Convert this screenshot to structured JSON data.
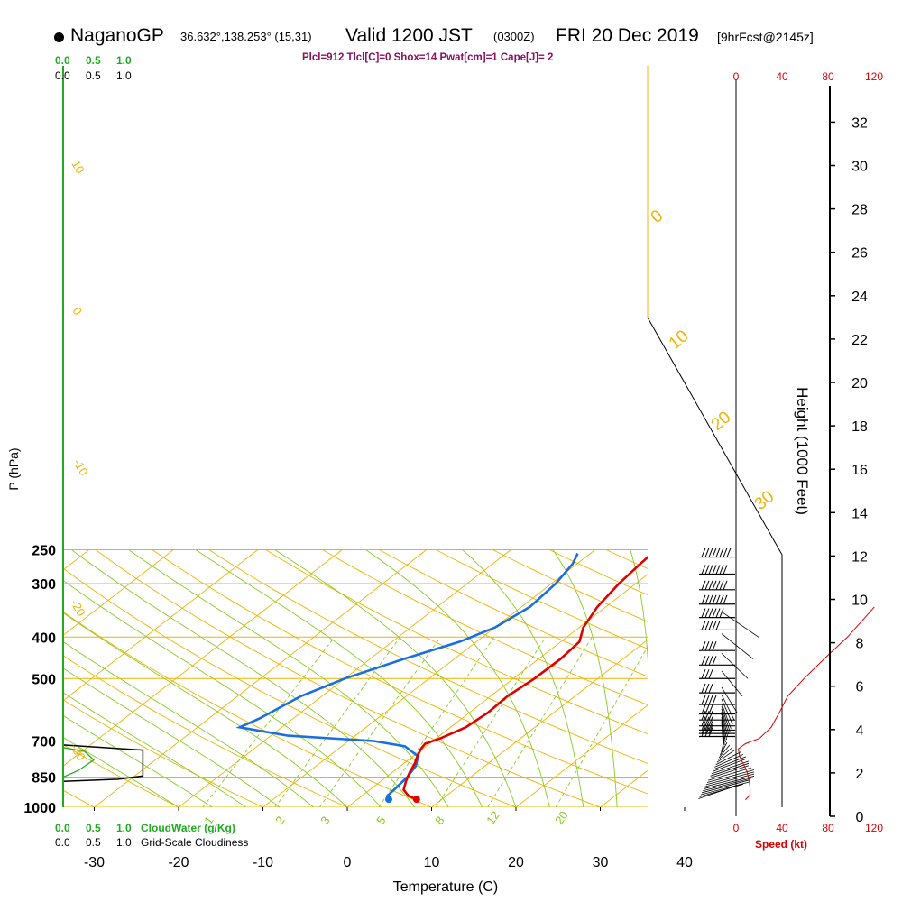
{
  "header": {
    "station": "NaganoGP",
    "coords": "36.632°,138.253° (15,31)",
    "valid": "Valid 1200 JST",
    "utc": "(0300Z)",
    "date": "FRI 20 Dec 2019",
    "forecast": "[9hrFcst@2145z]",
    "params": "Plcl=912 Tlcl[C]=0 Shox=14 Pwat[cm]=1 Cape[J]= 2"
  },
  "cloud_scale": {
    "top_green": [
      "0.0",
      "0.5",
      "1.0"
    ],
    "top_black": [
      "0.0",
      "0.5",
      "1.0"
    ],
    "bottom_green": [
      "0.0",
      "0.5",
      "1.0"
    ],
    "bottom_black": [
      "0.0",
      "0.5",
      "1.0"
    ],
    "cloudwater_label": "CloudWater (g/Kg)",
    "cloudiness_label": "Grid-Scale Cloudiness"
  },
  "colors": {
    "isobar": "#f0b400",
    "dry_adiabat": "#f0b400",
    "moist_adiabat": "#88cc22",
    "mixing_ratio": "#88cc22",
    "temperature": "#e00000",
    "dewpoint": "#1a6fe0",
    "cloudwater": "#22aa22",
    "cloudiness": "#000000",
    "speed": "#dd0000"
  },
  "chart_data": {
    "type": "skew-t",
    "xlabel": "Temperature (C)",
    "ylabel": "P (hPa)",
    "right_label": "Height (1000 Feet)",
    "speed_label": "Speed (kt)",
    "x_ticks": [
      -30,
      -20,
      -10,
      0,
      10,
      20,
      30,
      40
    ],
    "p_ticks": [
      250,
      300,
      400,
      500,
      700,
      850,
      1000
    ],
    "height_ticks": [
      0,
      2,
      4,
      6,
      8,
      10,
      12,
      14,
      16,
      18,
      20,
      22,
      24,
      26,
      28,
      30,
      32
    ],
    "speed_ticks": [
      "0",
      "40",
      "80",
      "120"
    ],
    "dry_adiabat_labels": [
      "10",
      "0",
      "-10",
      "-20",
      "-30"
    ],
    "moist_adiabat_labels": [
      "0",
      "10",
      "20",
      "30"
    ],
    "mixing_ratio_labels": [
      "1",
      "2",
      "3",
      "5",
      "8",
      "12",
      "20"
    ],
    "temperature": [
      {
        "p": 958,
        "t": 7.0
      },
      {
        "p": 940,
        "t": 5.5
      },
      {
        "p": 910,
        "t": 4.0
      },
      {
        "p": 870,
        "t": 3.0
      },
      {
        "p": 830,
        "t": 2.1
      },
      {
        "p": 790,
        "t": 1.3
      },
      {
        "p": 760,
        "t": 0.5
      },
      {
        "p": 730,
        "t": -0.2
      },
      {
        "p": 710,
        "t": -0.5
      },
      {
        "p": 690,
        "t": 0.5
      },
      {
        "p": 650,
        "t": 1.8
      },
      {
        "p": 600,
        "t": 2.2
      },
      {
        "p": 550,
        "t": 2.0
      },
      {
        "p": 500,
        "t": 2.5
      },
      {
        "p": 450,
        "t": 2.6
      },
      {
        "p": 410,
        "t": 2.2
      },
      {
        "p": 380,
        "t": 0.5
      },
      {
        "p": 340,
        "t": -1.0
      },
      {
        "p": 300,
        "t": -2.0
      },
      {
        "p": 270,
        "t": -2.5
      },
      {
        "p": 255,
        "t": -2.7
      }
    ],
    "dewpoint": [
      {
        "p": 958,
        "t": 3.7
      },
      {
        "p": 940,
        "t": 3.0
      },
      {
        "p": 900,
        "t": 2.8
      },
      {
        "p": 850,
        "t": 2.5
      },
      {
        "p": 800,
        "t": 1.8
      },
      {
        "p": 760,
        "t": 0.6
      },
      {
        "p": 720,
        "t": -2.5
      },
      {
        "p": 700,
        "t": -7.0
      },
      {
        "p": 680,
        "t": -18.0
      },
      {
        "p": 650,
        "t": -25.0
      },
      {
        "p": 620,
        "t": -24.0
      },
      {
        "p": 550,
        "t": -22.5
      },
      {
        "p": 500,
        "t": -20.0
      },
      {
        "p": 450,
        "t": -16.0
      },
      {
        "p": 410,
        "t": -12.0
      },
      {
        "p": 380,
        "t": -10.0
      },
      {
        "p": 340,
        "t": -9.0
      },
      {
        "p": 300,
        "t": -9.5
      },
      {
        "p": 270,
        "t": -10.5
      },
      {
        "p": 255,
        "t": -11.5
      }
    ],
    "surface_temperature": {
      "p": 958,
      "t": 7.0
    },
    "surface_dewpoint": {
      "p": 958,
      "t": 3.7
    },
    "wind": [
      {
        "p": 955,
        "speed": 5
      },
      {
        "p": 945,
        "speed": 8
      },
      {
        "p": 935,
        "speed": 10
      },
      {
        "p": 925,
        "speed": 10
      },
      {
        "p": 915,
        "speed": 11
      },
      {
        "p": 905,
        "speed": 12
      },
      {
        "p": 895,
        "speed": 12
      },
      {
        "p": 885,
        "speed": 12
      },
      {
        "p": 875,
        "speed": 12
      },
      {
        "p": 865,
        "speed": 11
      },
      {
        "p": 855,
        "speed": 10
      },
      {
        "p": 845,
        "speed": 10
      },
      {
        "p": 835,
        "speed": 10
      },
      {
        "p": 825,
        "speed": 9
      },
      {
        "p": 815,
        "speed": 9
      },
      {
        "p": 805,
        "speed": 8
      },
      {
        "p": 795,
        "speed": 7
      },
      {
        "p": 785,
        "speed": 5
      },
      {
        "p": 775,
        "speed": 4
      },
      {
        "p": 765,
        "speed": 3
      },
      {
        "p": 755,
        "speed": 2
      },
      {
        "p": 745,
        "speed": 1
      },
      {
        "p": 735,
        "speed": 1
      },
      {
        "p": 725,
        "speed": 0
      },
      {
        "p": 715,
        "speed": 0
      },
      {
        "p": 705,
        "speed": 0
      },
      {
        "p": 695,
        "speed": 0
      },
      {
        "p": 685,
        "speed": 0
      },
      {
        "p": 675,
        "speed": 0
      },
      {
        "p": 665,
        "speed": 0
      },
      {
        "p": 655,
        "speed": 0
      },
      {
        "p": 640,
        "speed": 0
      },
      {
        "p": 625,
        "speed": 0
      },
      {
        "p": 600,
        "speed": 0
      },
      {
        "p": 550,
        "speed": 0
      },
      {
        "p": 500,
        "speed": 0
      },
      {
        "p": 450,
        "speed": 0
      },
      {
        "p": 400,
        "speed": 0
      }
    ],
    "wind_barbs": [
      {
        "p": 260,
        "speed": 45
      },
      {
        "p": 285,
        "speed": 40
      },
      {
        "p": 310,
        "speed": 40
      },
      {
        "p": 335,
        "speed": 40
      },
      {
        "p": 360,
        "speed": 35
      },
      {
        "p": 385,
        "speed": 30
      },
      {
        "p": 430,
        "speed": 25
      },
      {
        "p": 465,
        "speed": 25
      },
      {
        "p": 500,
        "speed": 20
      },
      {
        "p": 540,
        "speed": 20
      },
      {
        "p": 575,
        "speed": 25
      },
      {
        "p": 605,
        "speed": 20
      },
      {
        "p": 625,
        "speed": 20
      },
      {
        "p": 645,
        "speed": 15
      },
      {
        "p": 660,
        "speed": 15
      },
      {
        "p": 672,
        "speed": 15
      },
      {
        "p": 683,
        "speed": 15
      }
    ],
    "speed_profile": [
      {
        "p": 960,
        "speed": 8
      },
      {
        "p": 935,
        "speed": 12
      },
      {
        "p": 900,
        "speed": 12
      },
      {
        "p": 860,
        "speed": 11
      },
      {
        "p": 820,
        "speed": 9
      },
      {
        "p": 790,
        "speed": 6
      },
      {
        "p": 760,
        "speed": 3
      },
      {
        "p": 730,
        "speed": 2
      },
      {
        "p": 710,
        "speed": 8
      },
      {
        "p": 690,
        "speed": 20
      },
      {
        "p": 650,
        "speed": 30
      },
      {
        "p": 600,
        "speed": 37
      },
      {
        "p": 550,
        "speed": 44
      },
      {
        "p": 500,
        "speed": 58
      },
      {
        "p": 450,
        "speed": 75
      },
      {
        "p": 400,
        "speed": 95
      },
      {
        "p": 360,
        "speed": 110
      },
      {
        "p": 340,
        "speed": 118
      }
    ],
    "cloudwater": [
      {
        "p": 965,
        "q": 0.0
      },
      {
        "p": 850,
        "q": 0.0
      },
      {
        "p": 820,
        "q": 0.25
      },
      {
        "p": 775,
        "q": 0.5
      },
      {
        "p": 740,
        "q": 0.35
      },
      {
        "p": 725,
        "q": 0.0
      }
    ],
    "cloudiness": [
      {
        "p": 870,
        "c": 0.0
      },
      {
        "p": 860,
        "c": 0.9
      },
      {
        "p": 845,
        "c": 1.3
      },
      {
        "p": 735,
        "c": 1.3
      },
      {
        "p": 715,
        "c": 0.0
      }
    ]
  }
}
